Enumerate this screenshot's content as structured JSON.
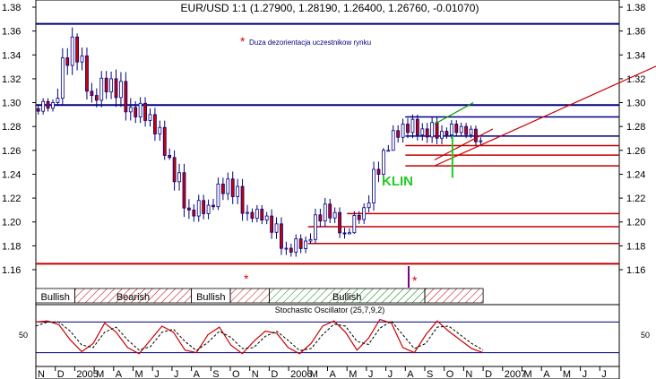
{
  "chart_data": {
    "type": "candlestick",
    "title": "EUR/USD 1:1 (1.27900, 1.28190, 1.26400, 1.26760, -0.01070)",
    "annotation_text": "Duza dezorientacja uczestnikow rynku",
    "pattern_label": "KLIN",
    "ylim": [
      1.15,
      1.38
    ],
    "y_ticks": [
      "1.38",
      "1.36",
      "1.34",
      "1.32",
      "1.30",
      "1.28",
      "1.26",
      "1.24",
      "1.22",
      "1.20",
      "1.18",
      "1.16"
    ],
    "x_labels": [
      "N",
      "D",
      "2005",
      "M",
      "A",
      "M",
      "J",
      "J",
      "A",
      "S",
      "O",
      "N",
      "D",
      "2006",
      "M",
      "A",
      "M",
      "J",
      "J",
      "A",
      "S",
      "O",
      "N",
      "D",
      "2007",
      "M",
      "A",
      "M",
      "J",
      "J"
    ],
    "ohlc": [
      {
        "month": "2004-11",
        "open": 1.295,
        "high": 1.305,
        "low": 1.282,
        "close": 1.3
      },
      {
        "month": "2004-12",
        "open": 1.3,
        "high": 1.365,
        "low": 1.298,
        "close": 1.355
      },
      {
        "month": "2005-01",
        "open": 1.355,
        "high": 1.358,
        "low": 1.3,
        "close": 1.306
      },
      {
        "month": "2005-02",
        "open": 1.306,
        "high": 1.328,
        "low": 1.278,
        "close": 1.32
      },
      {
        "month": "2005-03",
        "open": 1.32,
        "high": 1.35,
        "low": 1.285,
        "close": 1.296
      },
      {
        "month": "2005-04",
        "open": 1.296,
        "high": 1.318,
        "low": 1.275,
        "close": 1.29
      },
      {
        "month": "2005-05",
        "open": 1.29,
        "high": 1.3,
        "low": 1.252,
        "close": 1.254
      },
      {
        "month": "2005-06",
        "open": 1.254,
        "high": 1.26,
        "low": 1.198,
        "close": 1.21
      },
      {
        "month": "2005-07",
        "open": 1.21,
        "high": 1.227,
        "low": 1.187,
        "close": 1.214
      },
      {
        "month": "2005-08",
        "open": 1.214,
        "high": 1.255,
        "low": 1.21,
        "close": 1.236
      },
      {
        "month": "2005-09",
        "open": 1.236,
        "high": 1.252,
        "low": 1.2,
        "close": 1.208
      },
      {
        "month": "2005-10",
        "open": 1.208,
        "high": 1.218,
        "low": 1.19,
        "close": 1.205
      },
      {
        "month": "2005-11",
        "open": 1.205,
        "high": 1.212,
        "low": 1.166,
        "close": 1.178
      },
      {
        "month": "2005-12",
        "open": 1.178,
        "high": 1.2,
        "low": 1.168,
        "close": 1.184
      },
      {
        "month": "2006-01",
        "open": 1.184,
        "high": 1.225,
        "low": 1.182,
        "close": 1.215
      },
      {
        "month": "2006-02",
        "open": 1.215,
        "high": 1.222,
        "low": 1.186,
        "close": 1.19
      },
      {
        "month": "2006-03",
        "open": 1.19,
        "high": 1.22,
        "low": 1.19,
        "close": 1.212
      },
      {
        "month": "2006-04",
        "open": 1.212,
        "high": 1.262,
        "low": 1.208,
        "close": 1.26
      },
      {
        "month": "2006-05",
        "open": 1.26,
        "high": 1.297,
        "low": 1.26,
        "close": 1.282
      },
      {
        "month": "2006-06",
        "open": 1.282,
        "high": 1.29,
        "low": 1.25,
        "close": 1.278
      },
      {
        "month": "2006-07",
        "open": 1.278,
        "high": 1.292,
        "low": 1.25,
        "close": 1.276
      },
      {
        "month": "2006-08",
        "open": 1.276,
        "high": 1.295,
        "low": 1.268,
        "close": 1.28
      },
      {
        "month": "2006-09",
        "open": 1.28,
        "high": 1.289,
        "low": 1.264,
        "close": 1.268
      }
    ],
    "horizontal_levels": [
      {
        "value": 1.366,
        "color": "#000080"
      },
      {
        "value": 1.298,
        "color": "#000080"
      },
      {
        "value": 1.288,
        "color": "#000080"
      },
      {
        "value": 1.272,
        "color": "#000080"
      },
      {
        "value": 1.264,
        "color": "#c00000"
      },
      {
        "value": 1.256,
        "color": "#c00000"
      },
      {
        "value": 1.247,
        "color": "#c00000"
      },
      {
        "value": 1.207,
        "color": "#c00000"
      },
      {
        "value": 1.196,
        "color": "#c00000"
      },
      {
        "value": 1.182,
        "color": "#c00000"
      },
      {
        "value": 1.165,
        "color": "#c00000"
      }
    ],
    "trend_lines": [
      {
        "from": {
          "month": "2006-07",
          "value": 1.247
        },
        "to": {
          "month": "2007-07",
          "value": 1.335
        },
        "color": "#cc0000"
      },
      {
        "from": {
          "month": "2006-07",
          "value": 1.252
        },
        "to": {
          "month": "2006-10",
          "value": 1.278
        },
        "color": "#c00000"
      },
      {
        "from": {
          "month": "2006-07",
          "value": 1.282
        },
        "to": {
          "month": "2006-09",
          "value": 1.3
        },
        "color": "#00a000"
      }
    ],
    "trend_bands": [
      {
        "label": "Bullish",
        "start_month": "2004-11",
        "end_month": "2005-01",
        "pattern": "plain"
      },
      {
        "label": "Bearish",
        "start_month": "2005-01",
        "end_month": "2005-07",
        "pattern": "red-hatch"
      },
      {
        "label": "Bullish",
        "start_month": "2005-07",
        "end_month": "2005-09",
        "pattern": "plain"
      },
      {
        "label": "",
        "start_month": "2005-09",
        "end_month": "2005-11",
        "pattern": "red-hatch"
      },
      {
        "label": "Bullish",
        "start_month": "2005-11",
        "end_month": "2006-07",
        "pattern": "green-hatch"
      },
      {
        "label": "",
        "start_month": "2006-07",
        "end_month": "2006-10",
        "pattern": "red-hatch"
      }
    ],
    "oscillator": {
      "title": "Stochastic Oscillator (25,7,9,2)",
      "label": "50",
      "upper_line": 80,
      "lower_line": 20,
      "k_values": [
        80,
        82,
        75,
        45,
        22,
        38,
        78,
        60,
        30,
        18,
        45,
        72,
        60,
        25,
        20,
        55,
        70,
        35,
        18,
        42,
        62,
        58,
        30,
        18,
        38,
        72,
        82,
        60,
        25,
        48,
        85,
        78,
        30,
        20,
        55,
        82,
        62,
        45,
        28,
        20
      ],
      "d_values": [
        72,
        80,
        80,
        62,
        35,
        30,
        60,
        70,
        45,
        25,
        32,
        60,
        66,
        42,
        24,
        40,
        62,
        50,
        28,
        30,
        52,
        62,
        44,
        24,
        28,
        55,
        76,
        72,
        42,
        36,
        68,
        82,
        55,
        28,
        38,
        70,
        72,
        55,
        38,
        25
      ]
    }
  }
}
